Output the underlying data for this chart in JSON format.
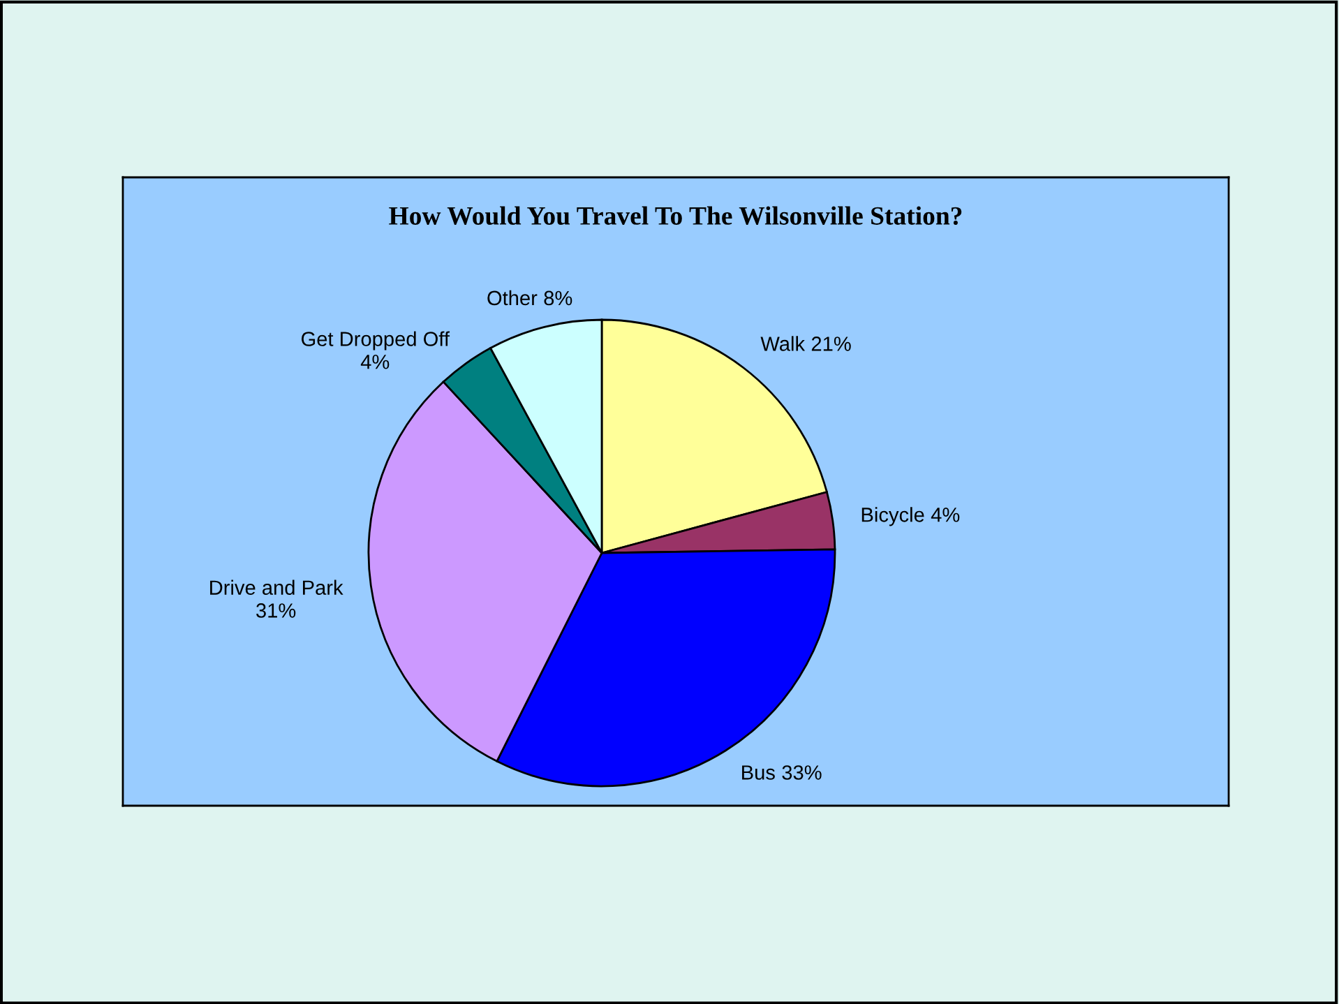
{
  "chart_data": {
    "type": "pie",
    "title": "How Would You Travel To The Wilsonville Station?",
    "categories": [
      "Walk",
      "Bicycle",
      "Bus",
      "Drive and Park",
      "Get Dropped Off",
      "Other"
    ],
    "values": [
      21,
      4,
      33,
      31,
      4,
      8
    ],
    "value_labels": [
      "21%",
      "4%",
      "33%",
      "31%",
      "4%",
      "8%"
    ],
    "colors": [
      "#ffff99",
      "#993366",
      "#0000ff",
      "#cc99ff",
      "#008080",
      "#ccffff"
    ],
    "legend": false
  }
}
